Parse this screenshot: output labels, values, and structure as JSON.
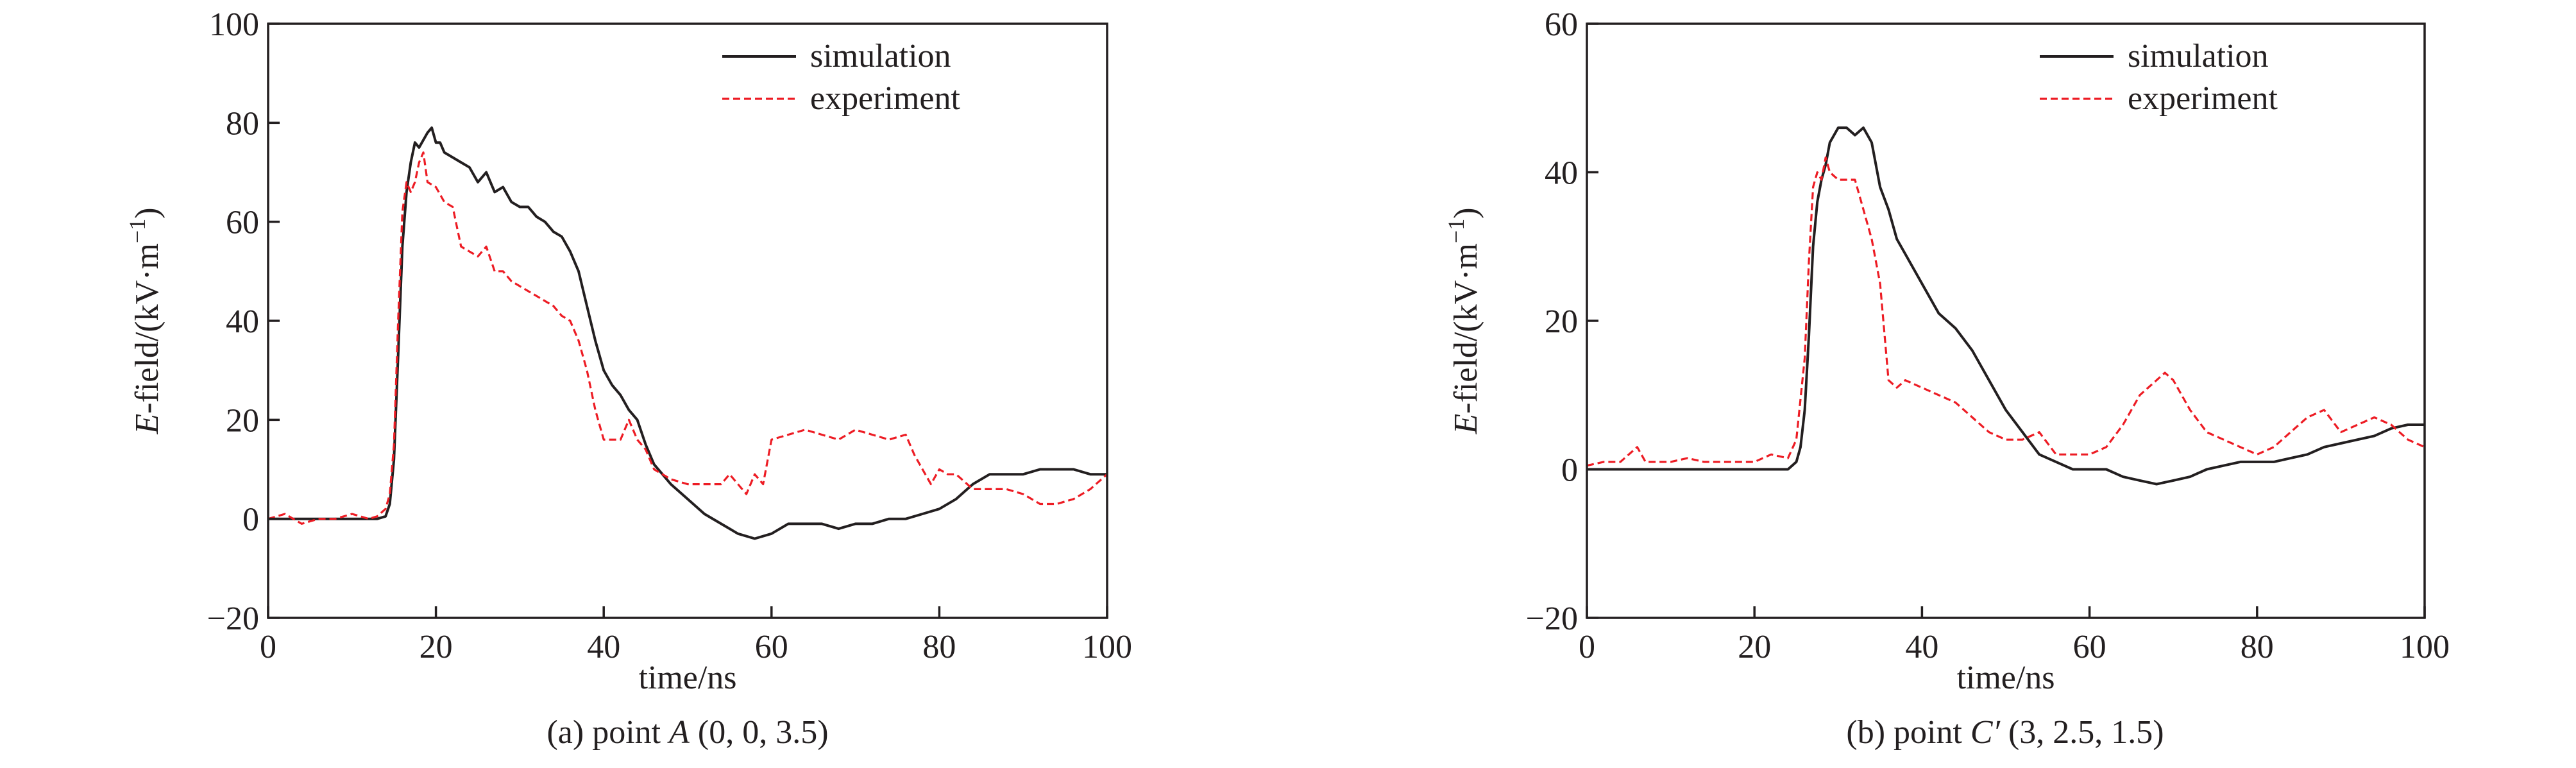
{
  "figures": [
    {
      "caption": {
        "label": "(a)",
        "text": " point ",
        "italic": "A",
        "coords": " (0, 0, 3.5)"
      },
      "chart_data": {
        "type": "line",
        "xlabel": "time/ns",
        "ylabel": {
          "italic": "E",
          "rest": "-field/(kV·m",
          "sup": "−1",
          "close": ")"
        },
        "xlim": [
          0,
          100
        ],
        "ylim": [
          -20,
          100
        ],
        "xticks": [
          0,
          20,
          40,
          60,
          80,
          100
        ],
        "xtick_labels": [
          "0",
          "20",
          "40",
          "60",
          "80",
          "100"
        ],
        "yticks": [
          -20,
          0,
          20,
          40,
          60,
          80,
          100
        ],
        "ytick_labels": [
          "−20",
          "0",
          "20",
          "40",
          "60",
          "80",
          "100"
        ],
        "grid": false,
        "legend_position": "top-right",
        "series": [
          {
            "name": "simulation",
            "color": "#231f20",
            "style": "solid",
            "x": [
              0,
              13,
              14,
              14.5,
              15,
              15.5,
              16,
              16.5,
              17,
              17.5,
              18,
              19,
              19.5,
              20,
              20.5,
              21,
              22,
              23,
              24,
              25,
              26,
              27,
              28,
              29,
              30,
              31,
              32,
              33,
              34,
              35,
              36,
              37,
              38,
              39,
              40,
              41,
              42,
              43,
              44,
              45,
              46,
              47,
              48,
              50,
              52,
              54,
              56,
              58,
              60,
              62,
              64,
              66,
              68,
              70,
              72,
              74,
              76,
              78,
              80,
              82,
              84,
              86,
              88,
              90,
              92,
              94,
              96,
              98,
              100
            ],
            "y": [
              0,
              0,
              0.5,
              3,
              12,
              33,
              55,
              66,
              72,
              76,
              75,
              78,
              79,
              76,
              76,
              74,
              73,
              72,
              71,
              68,
              70,
              66,
              67,
              64,
              63,
              63,
              61,
              60,
              58,
              57,
              54,
              50,
              43,
              36,
              30,
              27,
              25,
              22,
              20,
              15,
              11,
              9,
              7,
              4,
              1,
              -1,
              -3,
              -4,
              -3,
              -1,
              -1,
              -1,
              -2,
              -1,
              -1,
              0,
              0,
              1,
              2,
              4,
              7,
              9,
              9,
              9,
              10,
              10,
              10,
              9,
              9
            ]
          },
          {
            "name": "experiment",
            "color": "#ed1c24",
            "style": "dashed",
            "x": [
              0,
              2,
              4,
              6,
              8,
              10,
              12,
              13,
              14,
              14.5,
              15,
              15.5,
              16,
              16.5,
              17,
              17.5,
              18,
              18.5,
              19,
              20,
              21,
              22,
              23,
              24,
              25,
              26,
              27,
              28,
              29,
              30,
              31,
              32,
              33,
              34,
              35,
              36,
              37,
              38,
              39,
              40,
              41,
              42,
              43,
              44,
              45,
              46,
              48,
              50,
              52,
              54,
              55,
              56,
              57,
              58,
              59,
              60,
              62,
              64,
              66,
              68,
              70,
              72,
              74,
              76,
              77,
              78,
              79,
              80,
              81,
              82,
              84,
              86,
              88,
              90,
              92,
              94,
              96,
              98,
              100
            ],
            "y": [
              0,
              1,
              -1,
              0,
              0,
              1,
              0,
              0.5,
              2,
              5,
              15,
              40,
              62,
              68,
              66,
              68,
              72,
              74,
              68,
              67,
              64,
              63,
              55,
              54,
              53,
              55,
              50,
              50,
              48,
              47,
              46,
              45,
              44,
              43,
              41,
              40,
              36,
              30,
              22,
              16,
              16,
              16,
              20,
              16,
              14,
              10,
              8,
              7,
              7,
              7,
              9,
              7,
              5,
              9,
              7,
              16,
              17,
              18,
              17,
              16,
              18,
              17,
              16,
              17,
              13,
              10,
              7,
              10,
              9,
              9,
              6,
              6,
              6,
              5,
              3,
              3,
              4,
              6,
              9
            ]
          }
        ]
      }
    },
    {
      "caption": {
        "label": "(b)",
        "text": " point ",
        "italic": "C′",
        "coords": " (3, 2.5, 1.5)"
      },
      "chart_data": {
        "type": "line",
        "xlabel": "time/ns",
        "ylabel": {
          "italic": "E",
          "rest": "-field/(kV·m",
          "sup": "−1",
          "close": ")"
        },
        "xlim": [
          0,
          100
        ],
        "ylim": [
          -20,
          60
        ],
        "xticks": [
          0,
          20,
          40,
          60,
          80,
          100
        ],
        "xtick_labels": [
          "0",
          "20",
          "40",
          "60",
          "80",
          "100"
        ],
        "yticks": [
          -20,
          0,
          20,
          40,
          60
        ],
        "ytick_labels": [
          "−20",
          "0",
          "20",
          "40",
          "60"
        ],
        "grid": false,
        "legend_position": "top-right",
        "series": [
          {
            "name": "simulation",
            "color": "#231f20",
            "style": "solid",
            "x": [
              0,
              24,
              25,
              25.5,
              26,
              26.5,
              27,
              27.5,
              28,
              28.5,
              29,
              30,
              31,
              32,
              33,
              34,
              35,
              36,
              37,
              38,
              40,
              42,
              44,
              46,
              48,
              50,
              52,
              54,
              56,
              58,
              60,
              62,
              64,
              66,
              68,
              70,
              72,
              74,
              76,
              78,
              80,
              82,
              84,
              86,
              88,
              90,
              92,
              94,
              96,
              98,
              100
            ],
            "y": [
              0,
              0,
              1,
              3,
              8,
              18,
              30,
              36,
              39,
              41,
              44,
              46,
              46,
              45,
              46,
              44,
              38,
              35,
              31,
              29,
              25,
              21,
              19,
              16,
              12,
              8,
              5,
              2,
              1,
              0,
              0,
              0,
              -1,
              -1.5,
              -2,
              -1.5,
              -1,
              0,
              0.5,
              1,
              1,
              1,
              1.5,
              2,
              3,
              3.5,
              4,
              4.5,
              5.5,
              6,
              6
            ]
          },
          {
            "name": "experiment",
            "color": "#ed1c24",
            "style": "dashed",
            "x": [
              0,
              2,
              4,
              6,
              7,
              8,
              10,
              12,
              14,
              16,
              18,
              20,
              22,
              24,
              25,
              26,
              26.5,
              27,
              27.5,
              28,
              28.5,
              29,
              30,
              31,
              32,
              33,
              34,
              35,
              36,
              37,
              38,
              40,
              42,
              44,
              46,
              48,
              50,
              52,
              54,
              56,
              58,
              60,
              62,
              64,
              66,
              68,
              69,
              70,
              72,
              74,
              76,
              78,
              80,
              82,
              84,
              86,
              88,
              90,
              92,
              94,
              96,
              98,
              100
            ],
            "y": [
              0.5,
              1,
              1,
              3,
              1,
              1,
              1,
              1.5,
              1,
              1,
              1,
              1,
              2,
              1.5,
              4,
              15,
              28,
              38,
              40,
              39,
              42,
              40,
              39,
              39,
              39,
              35,
              31,
              25,
              12,
              11,
              12,
              11,
              10,
              9,
              7,
              5,
              4,
              4,
              5,
              2,
              2,
              2,
              3,
              6,
              10,
              12,
              13,
              12,
              8,
              5,
              4,
              3,
              2,
              3,
              5,
              7,
              8,
              5,
              6,
              7,
              6,
              4,
              3
            ]
          }
        ]
      }
    }
  ]
}
